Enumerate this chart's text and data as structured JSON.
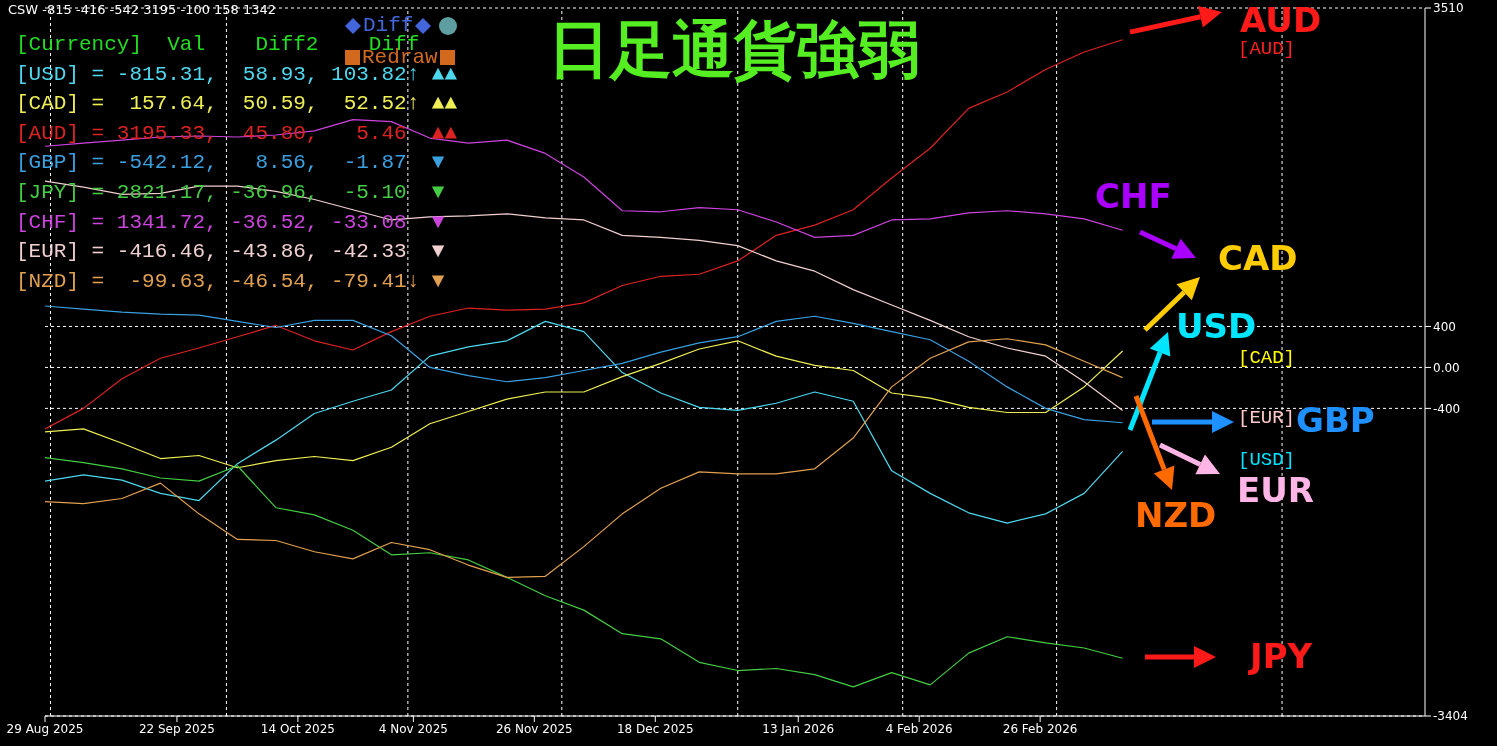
{
  "chart_data": {
    "type": "line",
    "title": "日足通貨強弱",
    "legend_title": "[Currency]  Val    Diff2    Diff",
    "legend": "top left",
    "grid": "y",
    "x": [
      "2025-08-29",
      "2025-09-05",
      "2025-09-12",
      "2025-09-19",
      "2025-09-26",
      "2025-10-03",
      "2025-10-10",
      "2025-10-17",
      "2025-10-24",
      "2025-10-31",
      "2025-11-07",
      "2025-11-14",
      "2025-11-21",
      "2025-11-28",
      "2025-12-05",
      "2025-12-12",
      "2025-12-19",
      "2025-12-26",
      "2026-01-02",
      "2026-01-09",
      "2026-01-16",
      "2026-01-23",
      "2026-01-30",
      "2026-02-06",
      "2026-02-13",
      "2026-02-20",
      "2026-02-27",
      "2026-03-06",
      "2026-03-13"
    ],
    "xlim": [
      "2025-08-29",
      "2026-05-07"
    ],
    "xticks": [
      {
        "value": "2025-08-29",
        "label": "29 Aug 2025"
      },
      {
        "value": "2025-09-22",
        "label": "22 Sep 2025"
      },
      {
        "value": "2025-10-14",
        "label": "14 Oct 2025"
      },
      {
        "value": "2025-11-04",
        "label": "4 Nov 2025"
      },
      {
        "value": "2025-11-26",
        "label": "26 Nov 2025"
      },
      {
        "value": "2025-12-18",
        "label": "18 Dec 2025"
      },
      {
        "value": "2026-01-13",
        "label": "13 Jan 2026"
      },
      {
        "value": "2026-02-04",
        "label": "4 Feb 2026"
      },
      {
        "value": "2026-02-26",
        "label": "26 Feb 2026"
      }
    ],
    "ylim": [
      -3404,
      3510
    ],
    "yticks": [
      3510,
      400,
      {
        "value": 0,
        "label": "0.00"
      },
      -400,
      -3404
    ],
    "series": [
      {
        "name": "[USD]",
        "color": "#4dd8ee",
        "values": [
          -1110,
          -1050,
          -1100,
          -1230,
          -1300,
          -940,
          -710,
          -450,
          -330,
          -220,
          110,
          200,
          260,
          450,
          350,
          -50,
          -250,
          -390,
          -420,
          -350,
          -240,
          -330,
          -1010,
          -1230,
          -1420,
          -1520,
          -1430,
          -1230,
          -820
        ]
      },
      {
        "name": "[CAD]",
        "color": "#eeee55",
        "values": [
          -630,
          -600,
          -740,
          -890,
          -860,
          -980,
          -910,
          -870,
          -910,
          -780,
          -550,
          -430,
          -310,
          -240,
          -240,
          -90,
          40,
          180,
          260,
          110,
          20,
          -30,
          -250,
          -300,
          -390,
          -440,
          -440,
          -190,
          160
        ]
      },
      {
        "name": "[AUD]",
        "color": "#dd2222",
        "values": [
          -600,
          -400,
          -110,
          90,
          190,
          300,
          410,
          260,
          170,
          350,
          500,
          580,
          560,
          570,
          630,
          800,
          890,
          910,
          1040,
          1290,
          1390,
          1540,
          1850,
          2140,
          2530,
          2690,
          2910,
          3080,
          3200
        ]
      },
      {
        "name": "[GBP]",
        "color": "#3aa0e0",
        "values": [
          600,
          570,
          540,
          520,
          510,
          450,
          390,
          460,
          460,
          310,
          0,
          -80,
          -140,
          -100,
          -30,
          40,
          150,
          240,
          300,
          450,
          500,
          430,
          350,
          270,
          60,
          -190,
          -400,
          -510,
          -540
        ]
      },
      {
        "name": "[JPY]",
        "color": "#44cc44",
        "values": [
          -880,
          -930,
          -990,
          -1080,
          -1110,
          -960,
          -1370,
          -1440,
          -1590,
          -1830,
          -1810,
          -1880,
          -2050,
          -2230,
          -2370,
          -2600,
          -2650,
          -2880,
          -2960,
          -2940,
          -3000,
          -3120,
          -2980,
          -3100,
          -2790,
          -2630,
          -2690,
          -2740,
          -2840
        ]
      },
      {
        "name": "[CHF]",
        "color": "#cc44dd",
        "values": [
          2160,
          2190,
          2220,
          2250,
          2260,
          2250,
          2270,
          2310,
          2420,
          2400,
          2240,
          2190,
          2220,
          2090,
          1860,
          1530,
          1520,
          1560,
          1540,
          1420,
          1270,
          1290,
          1440,
          1450,
          1510,
          1530,
          1500,
          1450,
          1340
        ]
      },
      {
        "name": "[EUR]",
        "color": "#f0d0d0",
        "values": [
          1820,
          1760,
          1690,
          1700,
          1770,
          1770,
          1720,
          1640,
          1540,
          1440,
          1470,
          1480,
          1500,
          1460,
          1440,
          1290,
          1270,
          1240,
          1190,
          1040,
          940,
          760,
          610,
          460,
          300,
          190,
          110,
          -140,
          -420
        ]
      },
      {
        "name": "[NZD]",
        "color": "#e0a050",
        "values": [
          -1310,
          -1330,
          -1280,
          -1130,
          -1430,
          -1680,
          -1690,
          -1800,
          -1870,
          -1710,
          -1780,
          -1930,
          -2050,
          -2040,
          -1750,
          -1430,
          -1180,
          -1020,
          -1040,
          -1040,
          -990,
          -690,
          -190,
          90,
          250,
          280,
          220,
          60,
          -100
        ]
      }
    ],
    "ref_lines": [
      {
        "axis": "x",
        "value": "2025-08-30",
        "color": "#ffffff",
        "line_style": "dashed"
      },
      {
        "axis": "x",
        "value": "2025-10-01",
        "color": "#ffffff",
        "line_style": "dashed"
      },
      {
        "axis": "x",
        "value": "2025-11-03",
        "color": "#ffffff",
        "line_style": "dashed"
      },
      {
        "axis": "x",
        "value": "2025-12-01",
        "color": "#ffffff",
        "line_style": "dashed"
      },
      {
        "axis": "x",
        "value": "2026-01-02",
        "color": "#ffffff",
        "line_style": "dashed"
      },
      {
        "axis": "x",
        "value": "2026-02-01",
        "color": "#ffffff",
        "line_style": "dashed"
      },
      {
        "axis": "x",
        "value": "2026-03-01",
        "color": "#ffffff",
        "line_style": "dashed"
      },
      {
        "axis": "x",
        "value": "2026-04-11",
        "color": "#ffffff",
        "line_style": "dashed"
      }
    ],
    "annotations": [
      "CSW -815 -416 -542 3195 -100 158 1342",
      " = -815.31,  58.93, 103.82↑ ▲▲",
      " =  157.64,  50.59,  52.52↑ ▲▲",
      " = 3195.33,  45.80,   5.46  ▲▲",
      " = -542.12,   8.56,  -1.87  ▼",
      " = 2821.17, -36.96,  -5.10  ▼",
      " = 1341.72, -36.52, -33.08  ▼",
      " = -416.46, -43.86, -42.33  ▼",
      " =  -99.63, -46.54, -79.41↓ ▼",
      "Diff",
      "Redraw",
      "AUD",
      "CHF",
      "CAD",
      "USD",
      "GBP",
      "EUR",
      "NZD",
      "JPY",
      "[AUD]",
      "[CAD]",
      "[EUR]",
      "[USD]"
    ]
  }
}
